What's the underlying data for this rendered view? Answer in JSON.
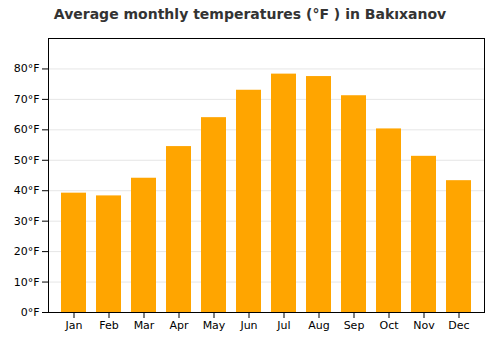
{
  "chart_data": {
    "type": "bar",
    "title": "Average monthly temperatures (°F ) in Bakıxanov",
    "categories": [
      "Jan",
      "Feb",
      "Mar",
      "Apr",
      "May",
      "Jun",
      "Jul",
      "Aug",
      "Sep",
      "Oct",
      "Nov",
      "Dec"
    ],
    "values": [
      39.2,
      38.3,
      44.1,
      54.5,
      64.0,
      73.0,
      78.3,
      77.5,
      71.2,
      60.3,
      51.3,
      43.3
    ],
    "color": "#FFA500",
    "ylim": [
      0,
      90
    ],
    "yticks": [
      {
        "value": 0,
        "label": "0°F"
      },
      {
        "value": 10,
        "label": "10°F"
      },
      {
        "value": 20,
        "label": "20°F"
      },
      {
        "value": 30,
        "label": "30°F"
      },
      {
        "value": 40,
        "label": "40°F"
      },
      {
        "value": 50,
        "label": "50°F"
      },
      {
        "value": 60,
        "label": "60°F"
      },
      {
        "value": 70,
        "label": "70°F"
      },
      {
        "value": 80,
        "label": "80°F"
      }
    ],
    "grid": true
  }
}
